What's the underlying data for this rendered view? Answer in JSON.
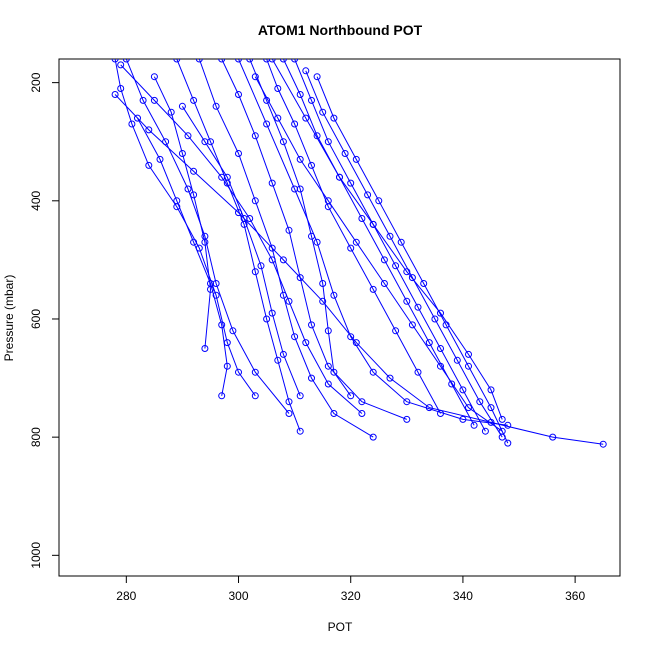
{
  "chart_data": {
    "type": "line",
    "title": "ATOM1 Northbound POT",
    "xlabel": "POT",
    "ylabel": "Pressure (mbar)",
    "xlim": [
      268,
      368
    ],
    "ylim": [
      1035,
      160
    ],
    "y_inverted": true,
    "x_ticks": [
      280,
      300,
      320,
      340,
      360
    ],
    "y_ticks": [
      200,
      400,
      600,
      800,
      1000
    ],
    "grid": false,
    "legend": "none",
    "marker": "open-circle",
    "color": "#0000ff",
    "series": [
      {
        "points": [
          [
            278.0,
            160
          ],
          [
            279.0,
            210
          ],
          [
            281.0,
            270
          ],
          [
            284.0,
            340
          ],
          [
            289.0,
            410
          ],
          [
            293.0,
            480
          ],
          [
            296.0,
            560
          ],
          [
            298.0,
            640
          ],
          [
            300.0,
            690
          ],
          [
            303.0,
            730
          ]
        ]
      },
      {
        "points": [
          [
            280.0,
            160
          ],
          [
            283.0,
            230
          ],
          [
            287.0,
            300
          ],
          [
            291.0,
            380
          ],
          [
            294.0,
            460
          ],
          [
            296.0,
            540
          ],
          [
            299.0,
            620
          ],
          [
            303.0,
            690
          ],
          [
            309.0,
            760
          ]
        ]
      },
      {
        "points": [
          [
            285.0,
            190
          ],
          [
            288.0,
            250
          ],
          [
            290.0,
            320
          ],
          [
            292.0,
            390
          ],
          [
            294.0,
            470
          ],
          [
            295.0,
            550
          ],
          [
            294.0,
            650
          ]
        ]
      },
      {
        "points": [
          [
            289.0,
            160
          ],
          [
            292.0,
            230
          ],
          [
            295.0,
            300
          ],
          [
            298.0,
            370
          ],
          [
            301.0,
            440
          ],
          [
            303.0,
            520
          ],
          [
            305.0,
            600
          ],
          [
            307.0,
            670
          ],
          [
            309.0,
            740
          ],
          [
            311.0,
            790
          ]
        ]
      },
      {
        "points": [
          [
            293.0,
            160
          ],
          [
            296.0,
            240
          ],
          [
            300.0,
            320
          ],
          [
            303.0,
            400
          ],
          [
            306.0,
            480
          ],
          [
            308.0,
            560
          ],
          [
            310.0,
            630
          ],
          [
            313.0,
            700
          ],
          [
            317.0,
            760
          ],
          [
            324.0,
            800
          ]
        ]
      },
      {
        "points": [
          [
            297.0,
            160
          ],
          [
            300.0,
            220
          ],
          [
            303.0,
            290
          ],
          [
            306.0,
            370
          ],
          [
            309.0,
            450
          ],
          [
            311.0,
            530
          ],
          [
            313.0,
            610
          ],
          [
            316.0,
            680
          ],
          [
            322.0,
            740
          ],
          [
            330.0,
            770
          ]
        ]
      },
      {
        "points": [
          [
            302.0,
            160
          ],
          [
            305.0,
            230
          ],
          [
            308.0,
            300
          ],
          [
            311.0,
            380
          ],
          [
            313.0,
            460
          ],
          [
            315.0,
            540
          ],
          [
            316.0,
            620
          ],
          [
            317.0,
            690
          ],
          [
            320.0,
            730
          ]
        ]
      },
      {
        "points": [
          [
            305.0,
            160
          ],
          [
            307.0,
            210
          ],
          [
            310.0,
            270
          ],
          [
            313.0,
            340
          ],
          [
            316.0,
            410
          ],
          [
            320.0,
            480
          ],
          [
            324.0,
            550
          ],
          [
            328.0,
            620
          ],
          [
            332.0,
            690
          ],
          [
            336.0,
            760
          ]
        ]
      },
      {
        "points": [
          [
            308.0,
            160
          ],
          [
            311.0,
            220
          ],
          [
            314.0,
            290
          ],
          [
            318.0,
            360
          ],
          [
            322.0,
            430
          ],
          [
            326.0,
            500
          ],
          [
            330.0,
            570
          ],
          [
            334.0,
            640
          ],
          [
            338.0,
            710
          ],
          [
            342.0,
            780
          ]
        ]
      },
      {
        "points": [
          [
            310.0,
            160
          ],
          [
            313.0,
            230
          ],
          [
            316.0,
            300
          ],
          [
            320.0,
            370
          ],
          [
            324.0,
            440
          ],
          [
            328.0,
            510
          ],
          [
            332.0,
            580
          ],
          [
            336.0,
            650
          ],
          [
            340.0,
            720
          ],
          [
            344.0,
            790
          ]
        ]
      },
      {
        "points": [
          [
            312.0,
            180
          ],
          [
            315.0,
            250
          ],
          [
            319.0,
            320
          ],
          [
            323.0,
            390
          ],
          [
            327.0,
            460
          ],
          [
            331.0,
            530
          ],
          [
            335.0,
            600
          ],
          [
            339.0,
            670
          ],
          [
            343.0,
            740
          ],
          [
            347.0,
            800
          ]
        ]
      },
      {
        "points": [
          [
            314.0,
            190
          ],
          [
            317.0,
            260
          ],
          [
            321.0,
            330
          ],
          [
            325.0,
            400
          ],
          [
            329.0,
            470
          ],
          [
            333.0,
            540
          ],
          [
            337.0,
            610
          ],
          [
            341.0,
            680
          ],
          [
            345.0,
            750
          ],
          [
            348.0,
            810
          ]
        ]
      },
      {
        "points": [
          [
            300.0,
            160
          ],
          [
            305.0,
            270
          ],
          [
            310.0,
            380
          ],
          [
            314.0,
            470
          ],
          [
            317.0,
            560
          ],
          [
            320.0,
            630
          ],
          [
            324.0,
            690
          ],
          [
            330.0,
            740
          ],
          [
            340.0,
            770
          ],
          [
            348.0,
            780
          ]
        ]
      },
      {
        "points": [
          [
            306.0,
            160
          ],
          [
            312.0,
            260
          ],
          [
            318.0,
            360
          ],
          [
            324.0,
            440
          ],
          [
            330.0,
            520
          ],
          [
            336.0,
            590
          ],
          [
            341.0,
            660
          ],
          [
            345.0,
            720
          ],
          [
            347.0,
            770
          ]
        ]
      },
      {
        "points": [
          [
            278.0,
            220
          ],
          [
            284.0,
            280
          ],
          [
            292.0,
            350
          ],
          [
            300.0,
            420
          ],
          [
            308.0,
            500
          ],
          [
            315.0,
            570
          ],
          [
            321.0,
            640
          ],
          [
            327.0,
            700
          ],
          [
            334.0,
            750
          ],
          [
            345.0,
            775
          ],
          [
            356.0,
            800
          ],
          [
            365.0,
            812
          ]
        ]
      },
      {
        "points": [
          [
            279.0,
            170
          ],
          [
            285.0,
            230
          ],
          [
            291.0,
            290
          ],
          [
            297.0,
            360
          ],
          [
            302.0,
            430
          ],
          [
            306.0,
            500
          ],
          [
            309.0,
            570
          ],
          [
            312.0,
            640
          ],
          [
            316.0,
            710
          ],
          [
            322.0,
            760
          ]
        ]
      },
      {
        "points": [
          [
            290.0,
            240
          ],
          [
            294.0,
            300
          ],
          [
            298.0,
            360
          ],
          [
            301.0,
            430
          ],
          [
            304.0,
            510
          ],
          [
            306.0,
            590
          ],
          [
            308.0,
            660
          ],
          [
            311.0,
            730
          ]
        ]
      },
      {
        "points": [
          [
            282.0,
            260
          ],
          [
            286.0,
            330
          ],
          [
            289.0,
            400
          ],
          [
            292.0,
            470
          ],
          [
            295.0,
            540
          ],
          [
            297.0,
            610
          ],
          [
            298.0,
            680
          ],
          [
            297.0,
            730
          ]
        ]
      },
      {
        "points": [
          [
            303.0,
            190
          ],
          [
            307.0,
            260
          ],
          [
            311.0,
            330
          ],
          [
            316.0,
            400
          ],
          [
            321.0,
            470
          ],
          [
            326.0,
            540
          ],
          [
            331.0,
            610
          ],
          [
            336.0,
            680
          ],
          [
            341.0,
            750
          ],
          [
            347.0,
            790
          ]
        ]
      }
    ]
  }
}
